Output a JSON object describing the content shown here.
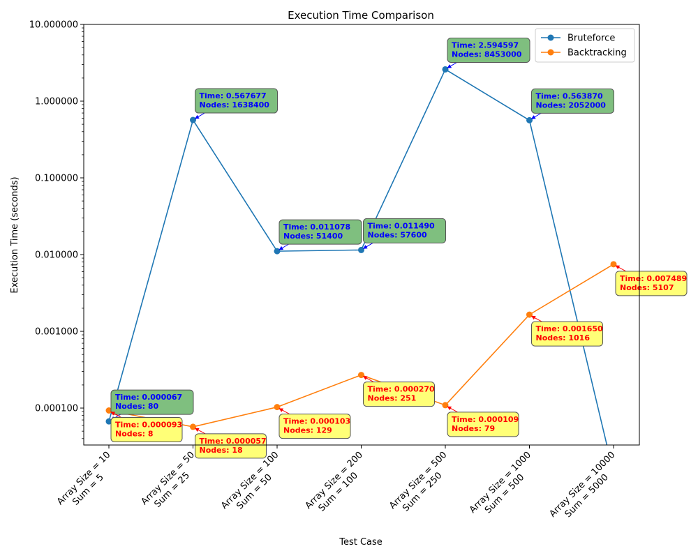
{
  "chart_data": {
    "type": "line",
    "title": "Execution Time Comparison",
    "xlabel": "Test Case",
    "ylabel": "Execution Time (seconds)",
    "yscale": "log",
    "ylim": [
      3.3e-05,
      10
    ],
    "yticks": [
      {
        "value": 0.0001,
        "label": "0.000100"
      },
      {
        "value": 0.001,
        "label": "0.001000"
      },
      {
        "value": 0.01,
        "label": "0.010000"
      },
      {
        "value": 0.1,
        "label": "0.100000"
      },
      {
        "value": 1,
        "label": "1.000000"
      },
      {
        "value": 10,
        "label": "10.000000"
      }
    ],
    "categories": [
      {
        "line1": "Array Size = 10",
        "line2": "Sum = 5"
      },
      {
        "line1": "Array Size = 50",
        "line2": "Sum = 25"
      },
      {
        "line1": "Array Size = 100",
        "line2": "Sum = 50"
      },
      {
        "line1": "Array Size = 200",
        "line2": "Sum = 100"
      },
      {
        "line1": "Array Size = 500",
        "line2": "Sum = 250"
      },
      {
        "line1": "Array Size = 1000",
        "line2": "Sum = 500"
      },
      {
        "line1": "Array Size = 10000",
        "line2": "Sum = 5000"
      }
    ],
    "legend_position": "top-right",
    "series": [
      {
        "name": "Bruteforce",
        "color": "#1f77b4",
        "annotation_bg": "#7fbf7f",
        "annotation_text_color": "#0000ff",
        "arrow_color": "#0000ff",
        "times": [
          6.7e-05,
          0.567677,
          0.011078,
          0.01149,
          2.594597,
          0.56387,
          0
        ],
        "nodes": [
          80,
          1638400,
          51400,
          57600,
          8453000,
          2052000,
          null
        ],
        "labels": [
          {
            "time": "Time: 0.000067",
            "nodes": "Nodes: 80"
          },
          {
            "time": "Time: 0.567677",
            "nodes": "Nodes: 1638400"
          },
          {
            "time": "Time: 0.011078",
            "nodes": "Nodes: 51400"
          },
          {
            "time": "Time: 0.011490",
            "nodes": "Nodes: 57600"
          },
          {
            "time": "Time: 2.594597",
            "nodes": "Nodes: 8453000"
          },
          {
            "time": "Time: 0.563870",
            "nodes": "Nodes: 2052000"
          }
        ]
      },
      {
        "name": "Backtracking",
        "color": "#ff7f0e",
        "annotation_bg": "#ffff77",
        "annotation_text_color": "#ff0000",
        "arrow_color": "#ff0000",
        "times": [
          9.3e-05,
          5.7e-05,
          0.000103,
          0.00027,
          0.000109,
          0.00165,
          0.007489
        ],
        "nodes": [
          8,
          18,
          129,
          251,
          79,
          1016,
          5107
        ],
        "labels": [
          {
            "time": "Time: 0.000093",
            "nodes": "Nodes: 8"
          },
          {
            "time": "Time: 0.000057",
            "nodes": "Nodes: 18"
          },
          {
            "time": "Time: 0.000103",
            "nodes": "Nodes: 129"
          },
          {
            "time": "Time: 0.000270",
            "nodes": "Nodes: 251"
          },
          {
            "time": "Time: 0.000109",
            "nodes": "Nodes: 79"
          },
          {
            "time": "Time: 0.001650",
            "nodes": "Nodes: 1016"
          },
          {
            "time": "Time: 0.007489",
            "nodes": "Nodes: 5107"
          }
        ]
      }
    ]
  }
}
